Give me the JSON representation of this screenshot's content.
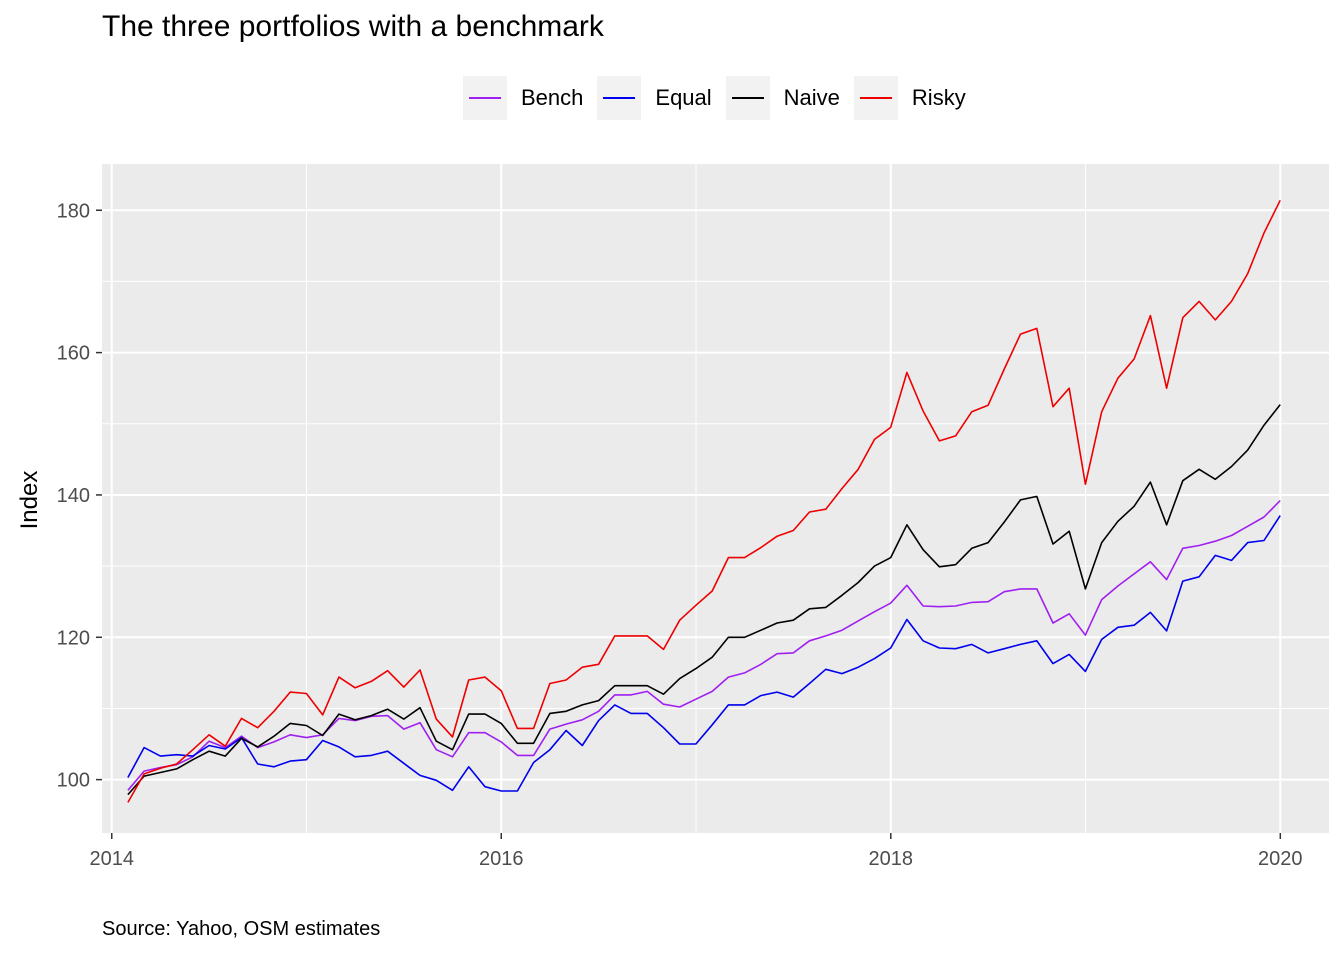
{
  "chart_data": {
    "type": "line",
    "title": "The three portfolios with a benchmark",
    "xlabel": "",
    "ylabel": "Index",
    "caption": "Source: Yahoo, OSM estimates",
    "xlim": [
      2013.95,
      2020.25
    ],
    "ylim": [
      92.5,
      186.5
    ],
    "xticks": [
      2014,
      2016,
      2018,
      2020
    ],
    "yticks": [
      100,
      120,
      140,
      160,
      180
    ],
    "grid": true,
    "legend_position": "top",
    "x_start": 2014.083,
    "x_step": 0.08333,
    "series": [
      {
        "name": "Bench",
        "color": "#a020f0",
        "values": [
          98.5,
          101.2,
          101.7,
          102.1,
          103.2,
          105.4,
          104.5,
          106.1,
          104.5,
          105.3,
          106.3,
          105.9,
          106.3,
          108.6,
          108.3,
          108.9,
          109.0,
          107.1,
          108.0,
          104.2,
          103.2,
          106.6,
          106.6,
          105.3,
          103.4,
          103.4,
          107.1,
          107.8,
          108.4,
          109.6,
          111.9,
          111.9,
          112.4,
          110.6,
          110.2,
          111.3,
          112.4,
          114.4,
          115.0,
          116.2,
          117.7,
          117.8,
          119.5,
          120.2,
          121.0,
          122.3,
          123.6,
          124.8,
          127.3,
          124.4,
          124.3,
          124.4,
          124.9,
          125.0,
          126.4,
          126.8,
          126.8,
          122.0,
          123.3,
          120.3,
          125.3,
          127.2,
          128.9,
          130.6,
          128.1,
          132.5,
          132.9,
          133.5,
          134.3,
          135.6,
          136.9,
          139.2
        ]
      },
      {
        "name": "Equal",
        "color": "#0000ee",
        "values": [
          100.3,
          104.5,
          103.3,
          103.5,
          103.3,
          104.8,
          104.3,
          105.9,
          102.2,
          101.8,
          102.6,
          102.8,
          105.5,
          104.6,
          103.2,
          103.4,
          104.0,
          102.3,
          100.6,
          99.9,
          98.5,
          101.8,
          99.0,
          98.4,
          98.4,
          102.4,
          104.2,
          106.9,
          104.8,
          108.3,
          110.5,
          109.3,
          109.3,
          107.3,
          105.0,
          105.0,
          107.7,
          110.5,
          110.5,
          111.8,
          112.3,
          111.6,
          113.5,
          115.5,
          114.9,
          115.8,
          117.0,
          118.5,
          122.5,
          119.5,
          118.5,
          118.4,
          119.0,
          117.8,
          118.4,
          119.0,
          119.5,
          116.3,
          117.6,
          115.2,
          119.7,
          121.4,
          121.7,
          123.5,
          120.9,
          127.9,
          128.5,
          131.5,
          130.8,
          133.3,
          133.6,
          137.1
        ]
      },
      {
        "name": "Naive",
        "color": "#000000",
        "values": [
          97.9,
          100.5,
          101.0,
          101.5,
          102.8,
          104.0,
          103.3,
          105.8,
          104.6,
          106.1,
          107.9,
          107.6,
          106.2,
          109.2,
          108.4,
          109.0,
          109.9,
          108.5,
          110.1,
          105.4,
          104.2,
          109.2,
          109.2,
          107.9,
          105.1,
          105.1,
          109.3,
          109.6,
          110.5,
          111.1,
          113.2,
          113.2,
          113.2,
          112.0,
          114.2,
          115.6,
          117.2,
          120.0,
          120.0,
          121.0,
          122.0,
          122.4,
          124.0,
          124.2,
          125.9,
          127.7,
          130.0,
          131.2,
          135.8,
          132.3,
          129.9,
          130.2,
          132.5,
          133.3,
          136.2,
          139.3,
          139.8,
          133.1,
          134.9,
          126.8,
          133.3,
          136.3,
          138.4,
          141.8,
          135.8,
          142.0,
          143.6,
          142.2,
          144.0,
          146.3,
          149.8,
          152.7
        ]
      },
      {
        "name": "Risky",
        "color": "#ee0000",
        "values": [
          96.8,
          100.8,
          101.6,
          102.2,
          104.2,
          106.3,
          104.7,
          108.6,
          107.3,
          109.6,
          112.3,
          112.1,
          109.1,
          114.4,
          112.9,
          113.8,
          115.3,
          113.0,
          115.4,
          108.5,
          106.0,
          114.0,
          114.4,
          112.5,
          107.2,
          107.2,
          113.5,
          114.0,
          115.8,
          116.2,
          120.2,
          120.2,
          120.2,
          118.3,
          122.4,
          124.5,
          126.5,
          131.2,
          131.2,
          132.6,
          134.2,
          135.0,
          137.6,
          138.0,
          140.9,
          143.6,
          147.8,
          149.5,
          157.2,
          151.8,
          147.6,
          148.3,
          151.7,
          152.6,
          157.7,
          162.6,
          163.4,
          152.4,
          155.0,
          141.5,
          151.7,
          156.4,
          159.1,
          165.2,
          155.0,
          164.9,
          167.2,
          164.6,
          167.2,
          171.1,
          176.8,
          181.4
        ]
      }
    ]
  }
}
